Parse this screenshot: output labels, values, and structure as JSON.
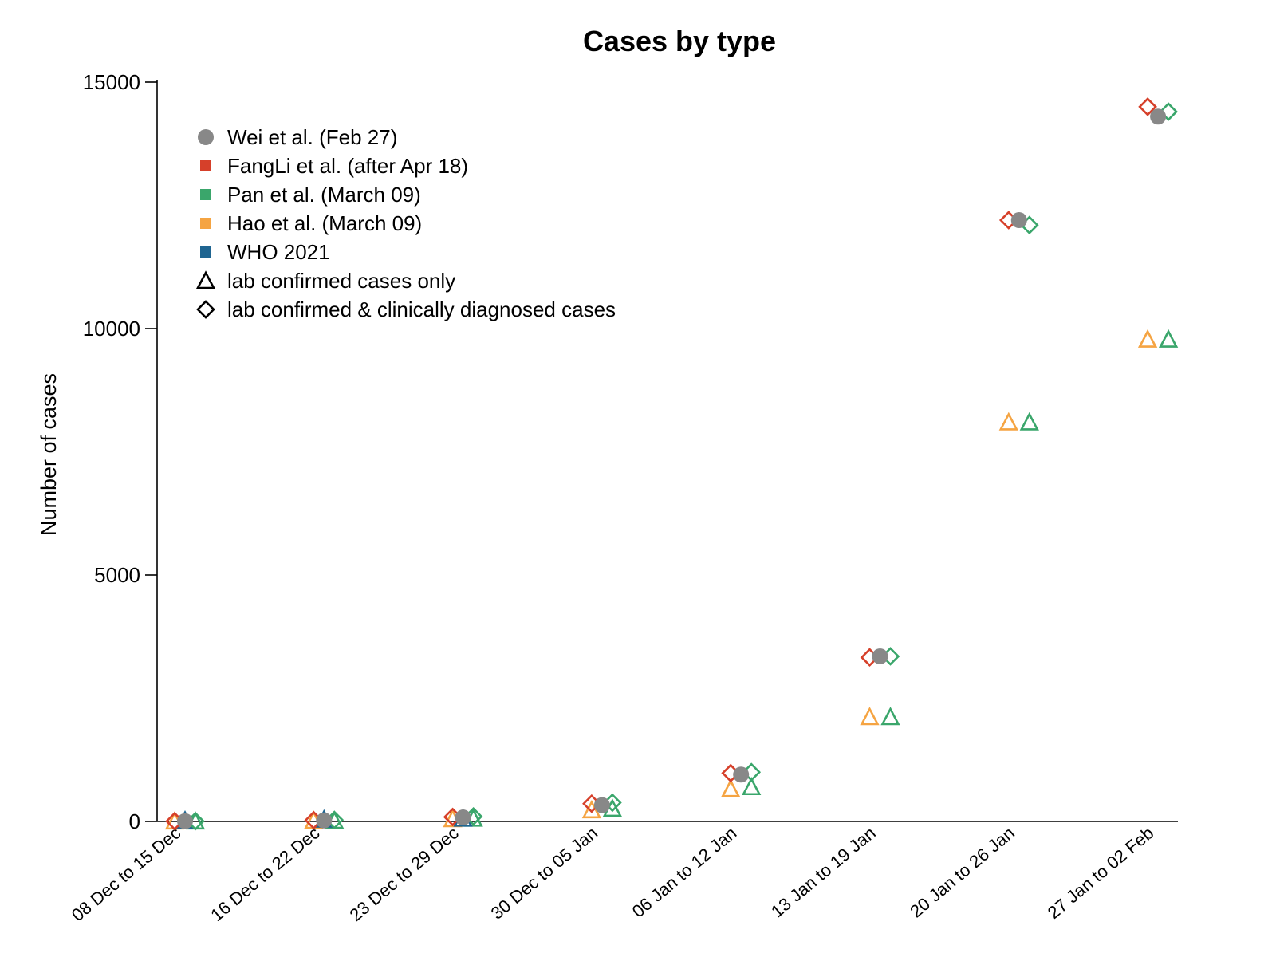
{
  "chart_data": {
    "type": "scatter",
    "title": "Cases by type",
    "xlabel": "",
    "ylabel": "Number of cases",
    "ylim": [
      0,
      15000
    ],
    "yticks": [
      0,
      5000,
      10000,
      15000
    ],
    "categories": [
      "08 Dec to 15 Dec",
      "16 Dec to 22 Dec",
      "23 Dec to 29 Dec",
      "30 Dec to 05 Jan",
      "06 Jan to 12 Jan",
      "13 Jan to 19 Jan",
      "20 Jan to 26 Jan",
      "27 Jan to 02 Feb"
    ],
    "grid": false,
    "legend_position": "top-left",
    "legend": [
      {
        "label": "Wei et al. (Feb 27)",
        "marker": "circle",
        "color": "#888888"
      },
      {
        "label": "FangLi et al. (after Apr 18)",
        "marker": "square",
        "color": "#d6402a"
      },
      {
        "label": "Pan et al. (March 09)",
        "marker": "square",
        "color": "#3aa66b"
      },
      {
        "label": "Hao et al. (March 09)",
        "marker": "square",
        "color": "#f5a442"
      },
      {
        "label": "WHO 2021",
        "marker": "square",
        "color": "#1f6591"
      },
      {
        "label": "lab confirmed cases only",
        "marker": "triangle",
        "color": "#000000"
      },
      {
        "label": "lab confirmed & clinically diagnosed cases",
        "marker": "diamond",
        "color": "#000000"
      }
    ],
    "series": [
      {
        "source": "Wei et al. (Feb 27)",
        "type": "lab confirmed & clinically diagnosed cases",
        "marker": "circle",
        "color": "#888888",
        "offset": 0,
        "values": [
          5,
          20,
          80,
          330,
          950,
          3350,
          12200,
          14300
        ]
      },
      {
        "source": "FangLi et al. (after Apr 18)",
        "type": "lab confirmed & clinically diagnosed cases",
        "marker": "diamond",
        "color": "#d6402a",
        "offset": -1,
        "values": [
          5,
          25,
          90,
          360,
          980,
          3330,
          12200,
          14500
        ]
      },
      {
        "source": "Pan et al. (March 09)",
        "type": "lab confirmed & clinically diagnosed cases",
        "marker": "diamond",
        "color": "#3aa66b",
        "offset": 1,
        "values": [
          5,
          30,
          100,
          380,
          1000,
          3350,
          12100,
          14400
        ]
      },
      {
        "source": "Hao et al. (March 09)",
        "type": "lab confirmed cases only",
        "marker": "triangle",
        "color": "#f5a442",
        "offset": -1,
        "values": [
          2,
          15,
          50,
          230,
          660,
          2120,
          8100,
          9780
        ]
      },
      {
        "source": "Pan et al. (March 09)",
        "type": "lab confirmed cases only",
        "marker": "triangle",
        "color": "#3aa66b",
        "offset": 1,
        "values": [
          2,
          15,
          60,
          260,
          700,
          2120,
          8100,
          9780
        ]
      },
      {
        "source": "WHO 2021",
        "type": "lab confirmed cases only",
        "marker": "triangle",
        "color": "#1f6591",
        "offset": 0,
        "values": [
          20,
          40,
          60,
          null,
          null,
          null,
          null,
          null
        ]
      }
    ]
  }
}
